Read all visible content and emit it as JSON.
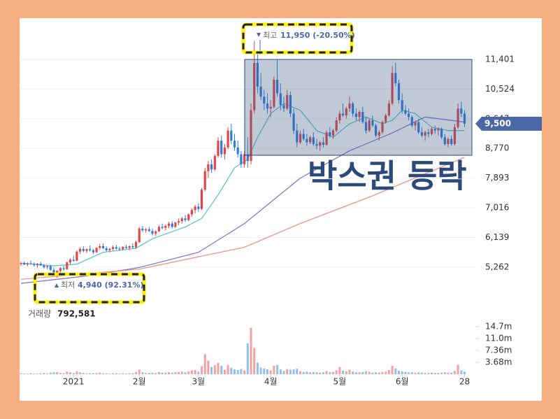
{
  "chart_data": {
    "type": "candlestick",
    "candles": [
      [
        5350,
        5420,
        5300,
        5380
      ],
      [
        5380,
        5430,
        5320,
        5340
      ],
      [
        5340,
        5400,
        5290,
        5370
      ],
      [
        5370,
        5450,
        5330,
        5350
      ],
      [
        5350,
        5400,
        5280,
        5320
      ],
      [
        5320,
        5380,
        5250,
        5360
      ],
      [
        5360,
        5420,
        5300,
        5310
      ],
      [
        5310,
        5350,
        5220,
        5260
      ],
      [
        5260,
        5320,
        5200,
        5290
      ],
      [
        5290,
        5330,
        5150,
        5180
      ],
      [
        5180,
        5240,
        5050,
        5100
      ],
      [
        5100,
        5180,
        4940,
        5150
      ],
      [
        5150,
        5260,
        5100,
        5230
      ],
      [
        5230,
        5300,
        5150,
        5200
      ],
      [
        5200,
        5420,
        5180,
        5400
      ],
      [
        5400,
        5520,
        5350,
        5480
      ],
      [
        5480,
        5600,
        5420,
        5450
      ],
      [
        5450,
        5750,
        5430,
        5720
      ],
      [
        5720,
        5850,
        5650,
        5800
      ],
      [
        5800,
        5880,
        5700,
        5740
      ],
      [
        5740,
        5820,
        5680,
        5790
      ],
      [
        5790,
        5900,
        5720,
        5760
      ],
      [
        5760,
        5800,
        5650,
        5700
      ],
      [
        5700,
        5850,
        5680,
        5830
      ],
      [
        5830,
        5950,
        5780,
        5880
      ],
      [
        5880,
        5960,
        5800,
        5820
      ],
      [
        5820,
        5880,
        5720,
        5760
      ],
      [
        5760,
        5830,
        5700,
        5800
      ],
      [
        5800,
        5900,
        5750,
        5850
      ],
      [
        5850,
        5920,
        5780,
        5810
      ],
      [
        5810,
        5870,
        5740,
        5790
      ],
      [
        5790,
        5880,
        5760,
        5860
      ],
      [
        5860,
        5920,
        5800,
        5830
      ],
      [
        5830,
        5900,
        5760,
        5880
      ],
      [
        5880,
        5960,
        5820,
        5850
      ],
      [
        5850,
        6050,
        5800,
        6000
      ],
      [
        6000,
        6450,
        5980,
        6400
      ],
      [
        6400,
        6480,
        6300,
        6350
      ],
      [
        6350,
        6420,
        6280,
        6380
      ],
      [
        6380,
        6450,
        6300,
        6330
      ],
      [
        6330,
        6400,
        6200,
        6250
      ],
      [
        6250,
        6350,
        6180,
        6320
      ],
      [
        6320,
        6500,
        6300,
        6450
      ],
      [
        6450,
        6550,
        6380,
        6420
      ],
      [
        6420,
        6520,
        6350,
        6480
      ],
      [
        6480,
        6600,
        6420,
        6550
      ],
      [
        6550,
        6620,
        6400,
        6450
      ],
      [
        6450,
        6600,
        6420,
        6580
      ],
      [
        6580,
        6700,
        6500,
        6620
      ],
      [
        6620,
        6750,
        6550,
        6700
      ],
      [
        6700,
        6800,
        6600,
        6650
      ],
      [
        6650,
        6850,
        6620,
        6820
      ],
      [
        6820,
        7000,
        6750,
        6950
      ],
      [
        6950,
        7100,
        6850,
        7050
      ],
      [
        7050,
        7150,
        6900,
        6980
      ],
      [
        6980,
        7600,
        6950,
        7550
      ],
      [
        7550,
        8200,
        7500,
        8100
      ],
      [
        8100,
        8400,
        7900,
        8300
      ],
      [
        8300,
        8450,
        8050,
        8150
      ],
      [
        8150,
        8600,
        8100,
        8550
      ],
      [
        8550,
        9100,
        8500,
        9000
      ],
      [
        9000,
        9150,
        8500,
        8600
      ],
      [
        8600,
        8900,
        8450,
        8800
      ],
      [
        8800,
        9400,
        8750,
        9300
      ],
      [
        9300,
        9500,
        8900,
        9000
      ],
      [
        9000,
        9200,
        8700,
        8800
      ],
      [
        8800,
        9000,
        8500,
        8600
      ],
      [
        8600,
        8700,
        8200,
        8300
      ],
      [
        8300,
        8700,
        8200,
        8600
      ],
      [
        8600,
        9100,
        8200,
        8400
      ],
      [
        8400,
        10100,
        8300,
        9900
      ],
      [
        9900,
        11950,
        9800,
        11300
      ],
      [
        11300,
        11600,
        10400,
        10600
      ],
      [
        10600,
        11000,
        10200,
        10300
      ],
      [
        10300,
        10500,
        9900,
        10100
      ],
      [
        10100,
        10400,
        9800,
        9950
      ],
      [
        9950,
        10200,
        9700,
        10000
      ],
      [
        10000,
        10900,
        9950,
        10800
      ],
      [
        10800,
        11401,
        10300,
        10400
      ],
      [
        10400,
        10700,
        9900,
        10050
      ],
      [
        10050,
        10300,
        9850,
        9950
      ],
      [
        9950,
        10500,
        9900,
        10350
      ],
      [
        10350,
        10450,
        9700,
        9800
      ],
      [
        9800,
        9950,
        9200,
        9300
      ],
      [
        9300,
        9500,
        8800,
        8950
      ],
      [
        8950,
        9300,
        8900,
        9200
      ],
      [
        9200,
        9350,
        9000,
        9050
      ],
      [
        9050,
        9200,
        8850,
        8950
      ],
      [
        8950,
        9150,
        8900,
        9100
      ],
      [
        9100,
        9250,
        8850,
        8900
      ],
      [
        8900,
        9050,
        8750,
        8850
      ],
      [
        8850,
        9000,
        8700,
        8950
      ],
      [
        8950,
        9100,
        8800,
        8880
      ],
      [
        8880,
        9300,
        8850,
        9250
      ],
      [
        9250,
        9400,
        9100,
        9150
      ],
      [
        9150,
        9350,
        9050,
        9300
      ],
      [
        9300,
        9700,
        9250,
        9600
      ],
      [
        9600,
        9900,
        9500,
        9800
      ],
      [
        9800,
        10100,
        9700,
        9750
      ],
      [
        9750,
        10000,
        9650,
        9950
      ],
      [
        9950,
        10300,
        9850,
        10100
      ],
      [
        10100,
        10150,
        9700,
        9800
      ],
      [
        9800,
        9950,
        9600,
        9700
      ],
      [
        9700,
        9900,
        9550,
        9850
      ],
      [
        9850,
        10000,
        9500,
        9550
      ],
      [
        9550,
        9700,
        9200,
        9300
      ],
      [
        9300,
        9650,
        9250,
        9600
      ],
      [
        9600,
        9750,
        9400,
        9450
      ],
      [
        9450,
        9500,
        9100,
        9150
      ],
      [
        9150,
        9300,
        9000,
        9250
      ],
      [
        9250,
        9600,
        9200,
        9550
      ],
      [
        9550,
        9800,
        9500,
        9750
      ],
      [
        9750,
        10200,
        9700,
        10100
      ],
      [
        10100,
        11200,
        10050,
        11000
      ],
      [
        11000,
        11300,
        10600,
        10700
      ],
      [
        10700,
        10800,
        10100,
        10200
      ],
      [
        10200,
        10400,
        9800,
        9900
      ],
      [
        9900,
        10050,
        9750,
        9800
      ],
      [
        9800,
        9950,
        9600,
        9700
      ],
      [
        9700,
        9750,
        9400,
        9450
      ],
      [
        9450,
        9600,
        9300,
        9550
      ],
      [
        9550,
        9650,
        9200,
        9250
      ],
      [
        9250,
        9400,
        9100,
        9150
      ],
      [
        9150,
        9300,
        9000,
        9250
      ],
      [
        9250,
        9350,
        9100,
        9200
      ],
      [
        9200,
        9400,
        9150,
        9350
      ],
      [
        9350,
        9450,
        9200,
        9300
      ],
      [
        9300,
        9400,
        9150,
        9350
      ],
      [
        9350,
        9400,
        9050,
        9100
      ],
      [
        9100,
        9200,
        8850,
        8900
      ],
      [
        8900,
        9100,
        8800,
        9050
      ],
      [
        9050,
        9150,
        8850,
        8900
      ],
      [
        8900,
        9500,
        8850,
        9400
      ],
      [
        9400,
        10100,
        9350,
        9950
      ],
      [
        9950,
        10150,
        9700,
        9800
      ],
      [
        9800,
        9900,
        9400,
        9500
      ]
    ],
    "volume": [
      0.3,
      0.2,
      0.2,
      0.3,
      0.2,
      0.2,
      0.3,
      0.4,
      0.3,
      0.5,
      0.6,
      0.7,
      0.4,
      0.3,
      0.8,
      0.6,
      0.4,
      0.9,
      0.6,
      0.4,
      0.3,
      0.3,
      0.3,
      0.4,
      0.5,
      0.3,
      0.3,
      0.2,
      0.3,
      0.3,
      0.2,
      0.3,
      0.2,
      0.3,
      0.3,
      0.7,
      1.4,
      0.6,
      0.4,
      0.4,
      0.5,
      0.4,
      0.7,
      0.5,
      0.5,
      0.6,
      0.5,
      0.6,
      0.7,
      0.8,
      0.6,
      0.9,
      1.2,
      1.3,
      0.8,
      2.5,
      6.2,
      4.2,
      2.2,
      2.8,
      3.5,
      2.6,
      1.4,
      2.9,
      2.0,
      1.5,
      1.3,
      1.6,
      1.2,
      9.5,
      14.3,
      8.1,
      3.6,
      2.1,
      1.8,
      1.5,
      1.2,
      2.6,
      2.8,
      1.5,
      1.0,
      1.6,
      1.4,
      1.5,
      1.7,
      0.9,
      0.7,
      0.8,
      0.6,
      0.7,
      0.6,
      0.5,
      0.6,
      1.0,
      0.6,
      0.7,
      1.2,
      2.2,
      1.1,
      0.9,
      1.4,
      0.8,
      0.6,
      0.6,
      0.7,
      0.9,
      0.8,
      0.5,
      0.6,
      0.5,
      0.7,
      0.8,
      1.3,
      2.6,
      1.8,
      1.1,
      0.9,
      0.7,
      0.6,
      0.6,
      0.5,
      0.6,
      0.5,
      0.4,
      0.4,
      0.5,
      0.4,
      0.4,
      0.5,
      0.6,
      0.5,
      0.5,
      1.0,
      2.9,
      1.2,
      0.79
    ],
    "up_color": "#e0454a",
    "down_color": "#2f7be0",
    "vol_up_color": "#f4a0a0",
    "vol_down_color": "#8fc0ee",
    "moving_averages": [
      {
        "color": "#55c2c8",
        "x": [
          0,
          10,
          17,
          25,
          35,
          40,
          50,
          55,
          60,
          65,
          69,
          72,
          76,
          80,
          85,
          90,
          95,
          100,
          105,
          110,
          113,
          116,
          120,
          125,
          130,
          135
        ],
        "values": [
          5380,
          5300,
          5350,
          5700,
          5820,
          6100,
          6450,
          6700,
          7400,
          8200,
          8450,
          9100,
          9800,
          10100,
          9900,
          9300,
          9100,
          9500,
          9700,
          9500,
          9600,
          9900,
          9800,
          9400,
          9300,
          9300
        ]
      },
      {
        "color": "#7a72d6",
        "x": [
          0,
          20,
          36,
          54,
          68,
          85,
          100,
          113,
          123,
          135
        ],
        "values": [
          4780,
          5000,
          5250,
          5700,
          6550,
          7893,
          8700,
          9230,
          9700,
          9550
        ]
      },
      {
        "color": "#f08a80",
        "x": [
          0,
          36,
          68,
          85,
          107,
          135
        ],
        "values": [
          4900,
          5200,
          5850,
          6550,
          7370,
          8510
        ]
      }
    ],
    "ylim": [
      4266,
      12580
    ],
    "yticks": [
      {
        "value": 5262,
        "label": "5,262"
      },
      {
        "value": 6139,
        "label": "6,139"
      },
      {
        "value": 7016,
        "label": "7,016"
      },
      {
        "value": 7893,
        "label": "7,893"
      },
      {
        "value": 8770,
        "label": "8,770"
      },
      {
        "value": 9647,
        "label": "9,647"
      },
      {
        "value": 10524,
        "label": "10,524"
      },
      {
        "value": 11401,
        "label": "11,401"
      }
    ],
    "vlim": [
      0,
      21.6
    ],
    "vticks": [
      {
        "value": 3.68,
        "label": "3.68m"
      },
      {
        "value": 7.36,
        "label": "7.36m"
      },
      {
        "value": 11.0,
        "label": "11.0m"
      },
      {
        "value": 14.7,
        "label": "14.7m"
      }
    ],
    "xticks": [
      {
        "value": 16,
        "label": "2021"
      },
      {
        "value": 36,
        "label": "2월"
      },
      {
        "value": 54,
        "label": "3월"
      },
      {
        "value": 76,
        "label": "4월"
      },
      {
        "value": 97,
        "label": "5월"
      },
      {
        "value": 116,
        "label": "6월"
      },
      {
        "value": 135,
        "label": "28"
      }
    ],
    "current_price": {
      "value": 9500,
      "label": "9,500",
      "color": "#4a67a8"
    },
    "volume_title": "거래량",
    "volume_last": "792,581",
    "annotations": {
      "high": {
        "label": "최고",
        "text": "11,950 (-20.50%)"
      },
      "low": {
        "label": "최저",
        "text": "4,940 (92.31%)"
      }
    },
    "overlay_text": "박스권 등락"
  }
}
